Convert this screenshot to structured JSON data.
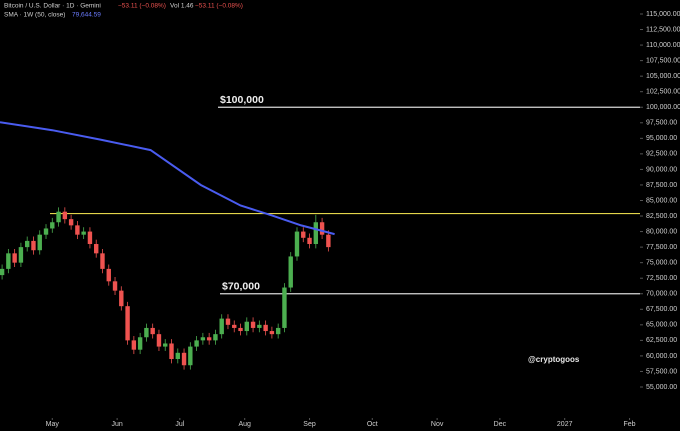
{
  "chart_data": {
    "type": "candlestick",
    "header": {
      "symbol": "Bitcoin / U.S. Dollar · 1D · Gemini",
      "change": "−53.11 (−0.08%)",
      "volume": "Vol 1.46",
      "volume_change": "−53.11 (−0.08%)",
      "indicator": "SMA · 1W (50, close)",
      "indicator_value": "79,644.59"
    },
    "watermark": "@cryptogoos",
    "up_color": "#4caf50",
    "down_color": "#ef5350",
    "x": [
      -24,
      -21,
      -18,
      -15,
      -12,
      -9,
      -6,
      -3,
      0,
      3,
      6,
      9,
      12,
      15,
      18,
      21,
      24,
      27,
      30,
      33,
      36,
      39,
      42,
      45,
      48,
      51,
      54,
      57,
      60,
      63,
      66,
      69,
      72,
      75,
      78,
      81,
      84,
      87,
      90,
      93,
      96,
      99,
      102,
      105,
      108,
      111,
      114,
      117,
      120,
      123,
      126,
      129,
      132
    ],
    "open": [
      73000,
      74000,
      76500,
      75000,
      77500,
      78500,
      77000,
      79500,
      80500,
      81500,
      83200,
      82000,
      81000,
      79500,
      80000,
      78000,
      76500,
      74000,
      72000,
      70500,
      68000,
      62500,
      61000,
      63000,
      64500,
      63500,
      61500,
      62000,
      59500,
      60500,
      58500,
      61500,
      62500,
      63000,
      62500,
      63500,
      66000,
      65000,
      64500,
      64000,
      65500,
      64500,
      65000,
      64000,
      63500,
      64500,
      71000,
      76000,
      80000,
      79000,
      78000,
      81500,
      79500
    ],
    "high": [
      74700,
      77200,
      77200,
      78200,
      79200,
      79200,
      80200,
      81200,
      82200,
      83900,
      83900,
      82700,
      81700,
      80700,
      80700,
      78700,
      77200,
      74700,
      72700,
      71200,
      68700,
      63200,
      63700,
      65200,
      65200,
      64200,
      62700,
      62700,
      61200,
      61200,
      62200,
      63200,
      63700,
      63700,
      64200,
      66700,
      66700,
      65700,
      65200,
      66200,
      66200,
      65700,
      65700,
      64700,
      65200,
      71700,
      76700,
      80700,
      80700,
      79700,
      82700,
      82200,
      80200
    ],
    "low": [
      72300,
      73300,
      74300,
      74300,
      76800,
      76300,
      76300,
      78800,
      79800,
      80800,
      81300,
      80300,
      78800,
      78800,
      77300,
      75800,
      73300,
      71300,
      69800,
      67300,
      61800,
      60300,
      60300,
      62300,
      62800,
      60800,
      60800,
      58800,
      58800,
      57800,
      57800,
      60800,
      61800,
      61800,
      61800,
      62800,
      64300,
      63800,
      63300,
      63300,
      63800,
      63800,
      63300,
      62800,
      62800,
      63800,
      70300,
      75300,
      78300,
      77300,
      77300,
      78800,
      76800
    ],
    "close": [
      74000,
      76500,
      75000,
      77500,
      78500,
      77000,
      79500,
      80500,
      81500,
      83200,
      82000,
      81000,
      79500,
      80000,
      78000,
      76500,
      74000,
      72000,
      70500,
      68000,
      62500,
      61000,
      63000,
      64500,
      63500,
      61500,
      62000,
      59500,
      60500,
      58500,
      61500,
      62500,
      63000,
      62500,
      63500,
      66000,
      65000,
      64500,
      64000,
      65500,
      64500,
      65000,
      64000,
      63500,
      64500,
      71000,
      76000,
      80000,
      79000,
      78000,
      81500,
      79500,
      77500
    ],
    "sma": {
      "color": "#4a5cf0",
      "x": [
        -25,
        0,
        23,
        47,
        71,
        90,
        105,
        119,
        135
      ],
      "values": [
        97600,
        96300,
        94800,
        93100,
        87500,
        84200,
        82600,
        81000,
        79600
      ]
    },
    "levels": [
      {
        "label": "$100,000",
        "value": 100000,
        "color": "#d8d8d8"
      },
      {
        "label": "$70,000",
        "value": 70000,
        "color": "#d8d8d8"
      },
      {
        "value": 82900,
        "color": "#e3d54a"
      }
    ],
    "xlim": [
      -25,
      281
    ],
    "xticks": [
      {
        "value": 0,
        "label": "May"
      },
      {
        "value": 31,
        "label": "Jun"
      },
      {
        "value": 61,
        "label": "Jul"
      },
      {
        "value": 92,
        "label": "Aug"
      },
      {
        "value": 123,
        "label": "Sep"
      },
      {
        "value": 153,
        "label": "Oct"
      },
      {
        "value": 184,
        "label": "Nov"
      },
      {
        "value": 214,
        "label": "Dec"
      },
      {
        "value": 245,
        "label": "2027"
      },
      {
        "value": 276,
        "label": "Feb"
      }
    ],
    "ylim": [
      51300,
      117250
    ],
    "yticks": [
      {
        "value": 55000,
        "label": "55,000.00"
      },
      {
        "value": 57500,
        "label": "57,500.00"
      },
      {
        "value": 60000,
        "label": "60,000.00"
      },
      {
        "value": 62500,
        "label": "62,500.00"
      },
      {
        "value": 65000,
        "label": "65,000.00"
      },
      {
        "value": 67500,
        "label": "67,500.00"
      },
      {
        "value": 70000,
        "label": "70,000.00"
      },
      {
        "value": 72500,
        "label": "72,500.00"
      },
      {
        "value": 75000,
        "label": "75,000.00"
      },
      {
        "value": 77500,
        "label": "77,500.00"
      },
      {
        "value": 80000,
        "label": "80,000.00"
      },
      {
        "value": 82500,
        "label": "82,500.00"
      },
      {
        "value": 85000,
        "label": "85,000.00"
      },
      {
        "value": 87500,
        "label": "87,500.00"
      },
      {
        "value": 90000,
        "label": "90,000.00"
      },
      {
        "value": 92500,
        "label": "92,500.00"
      },
      {
        "value": 95000,
        "label": "95,000.00"
      },
      {
        "value": 97500,
        "label": "97,500.00"
      },
      {
        "value": 100000,
        "label": "100,000.00"
      },
      {
        "value": 102500,
        "label": "102,500.00"
      },
      {
        "value": 105000,
        "label": "105,000.00"
      },
      {
        "value": 107500,
        "label": "107,500.00"
      },
      {
        "value": 110000,
        "label": "110,000.00"
      },
      {
        "value": 112500,
        "label": "112,500.00"
      },
      {
        "value": 115000,
        "label": "115,000.00"
      }
    ]
  }
}
